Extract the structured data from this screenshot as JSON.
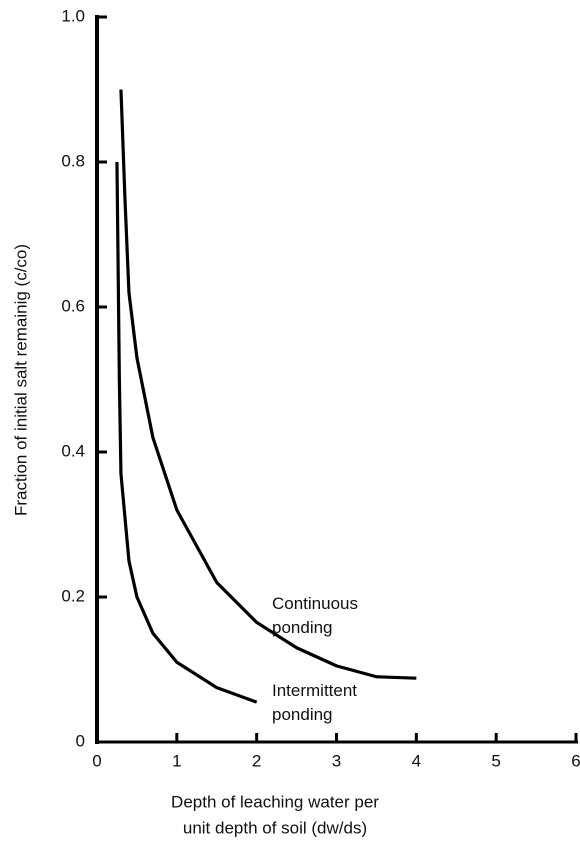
{
  "chart_data": {
    "type": "line",
    "xlabel": [
      "Depth of leaching water per",
      "unit depth of soil (dw/ds)"
    ],
    "ylabel": "Fraction of initial salt remainig (c/co)",
    "series": [
      {
        "name": "Continuous ponding",
        "color": "#000000",
        "x": [
          0.3,
          0.35,
          0.4,
          0.5,
          0.7,
          1.0,
          1.5,
          2.0,
          2.5,
          3.0,
          3.5,
          4.0
        ],
        "values": [
          0.9,
          0.75,
          0.62,
          0.53,
          0.42,
          0.32,
          0.22,
          0.165,
          0.13,
          0.105,
          0.09,
          0.088
        ]
      },
      {
        "name": "Intermittent ponding",
        "color": "#000000",
        "x": [
          0.25,
          0.28,
          0.3,
          0.4,
          0.5,
          0.7,
          1.0,
          1.5,
          2.0
        ],
        "values": [
          0.8,
          0.5,
          0.37,
          0.25,
          0.2,
          0.15,
          0.11,
          0.075,
          0.055
        ]
      }
    ],
    "xlim": [
      0,
      6
    ],
    "xticks": [
      0,
      1,
      2,
      3,
      4,
      5,
      6
    ],
    "ylim": [
      0,
      1
    ],
    "yticks": [
      0,
      0.2,
      0.4,
      0.6,
      0.8,
      {
        "value": 1,
        "label": "1.0"
      }
    ]
  }
}
